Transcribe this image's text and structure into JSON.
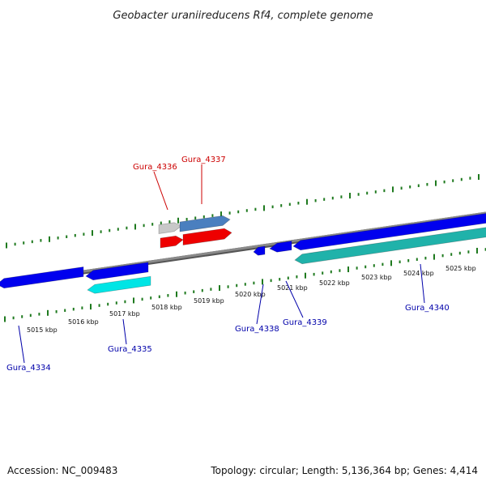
{
  "title": "Geobacter uraniireducens Rf4, complete genome",
  "accession": "Accession: NC_009483",
  "summary": "Topology: circular; Length: 5,136,364 bp; Genes: 4,414",
  "colors": {
    "backbone": "#8a8a8a",
    "tick": "#1f7a1f",
    "label_forward": "#cc0000",
    "label_reverse": "#0000aa",
    "gene_blue": "#0000ee",
    "gene_cyan": "#00e5e5",
    "gene_teal": "#20b2aa",
    "gene_red": "#ee0000",
    "gene_steelblue": "#4a7fbf",
    "gene_grey": "#c8c8c8"
  },
  "ticks": [
    {
      "label": "5015 kbp"
    },
    {
      "label": "5016 kbp"
    },
    {
      "label": "5017 kbp"
    },
    {
      "label": "5018 kbp"
    },
    {
      "label": "5019 kbp"
    },
    {
      "label": "5020 kbp"
    },
    {
      "label": "5021 kbp"
    },
    {
      "label": "5022 kbp"
    },
    {
      "label": "5023 kbp"
    },
    {
      "label": "5024 kbp"
    },
    {
      "label": "5025 kbp"
    }
  ],
  "genes": [
    {
      "name": "Gura_4334",
      "strand": "reverse"
    },
    {
      "name": "Gura_4335",
      "strand": "reverse"
    },
    {
      "name": "Gura_4336",
      "strand": "forward"
    },
    {
      "name": "Gura_4337",
      "strand": "forward"
    },
    {
      "name": "Gura_4338",
      "strand": "reverse"
    },
    {
      "name": "Gura_4339",
      "strand": "reverse"
    },
    {
      "name": "Gura_4340",
      "strand": "reverse"
    }
  ]
}
